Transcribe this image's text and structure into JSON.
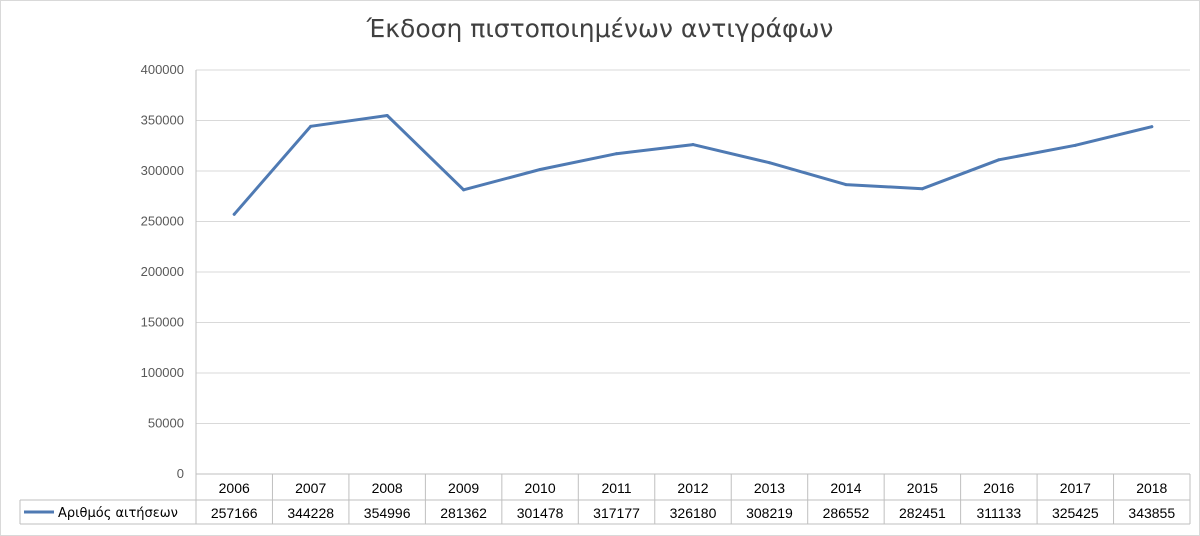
{
  "chart_data": {
    "type": "line",
    "title": "Έκδοση πιστοποιημένων αντιγράφων",
    "categories": [
      "2006",
      "2007",
      "2008",
      "2009",
      "2010",
      "2011",
      "2012",
      "2013",
      "2014",
      "2015",
      "2016",
      "2017",
      "2018"
    ],
    "series": [
      {
        "name": "Αριθμός αιτήσεων",
        "color": "#4f7ab3",
        "values": [
          257166,
          344228,
          354996,
          281362,
          301478,
          317177,
          326180,
          308219,
          286552,
          282451,
          311133,
          325425,
          343855
        ]
      }
    ],
    "y_ticks": [
      "0",
      "50000",
      "100000",
      "150000",
      "200000",
      "250000",
      "300000",
      "350000",
      "400000"
    ],
    "ylim": [
      0,
      400000
    ],
    "grid": true,
    "legend_placement": "data-table-bottom-left",
    "data_table": true
  }
}
